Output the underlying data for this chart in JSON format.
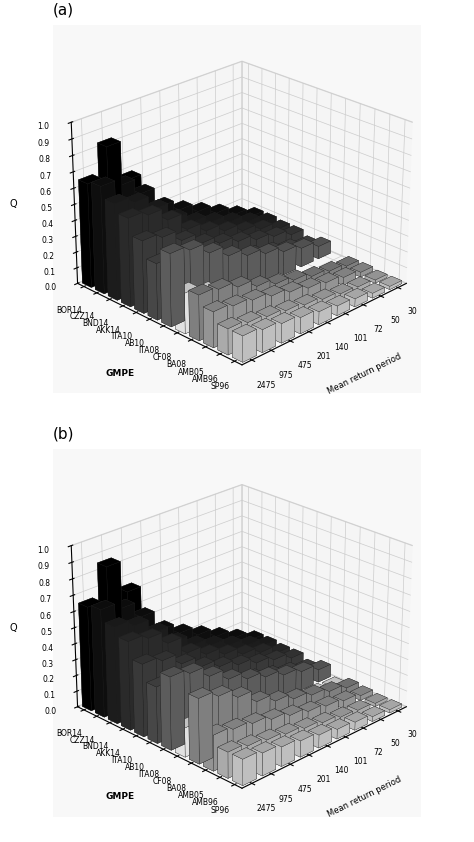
{
  "gmpes": [
    "SP96",
    "AMB96",
    "AMB05",
    "BA08",
    "CF08",
    "ITA08",
    "AB10",
    "ITA10",
    "AKK14",
    "BND14",
    "CZZ14",
    "BOR14"
  ],
  "return_periods": [
    "2475",
    "975",
    "475",
    "201",
    "140",
    "101",
    "72",
    "50",
    "30"
  ],
  "panel_a": [
    [
      0.16,
      0.14,
      0.12,
      0.1,
      0.08,
      0.06,
      0.05,
      0.03,
      0.02
    ],
    [
      0.16,
      0.14,
      0.12,
      0.1,
      0.08,
      0.06,
      0.04,
      0.03,
      0.02
    ],
    [
      0.22,
      0.2,
      0.18,
      0.15,
      0.12,
      0.09,
      0.07,
      0.05,
      0.03
    ],
    [
      0.28,
      0.26,
      0.22,
      0.17,
      0.13,
      0.1,
      0.07,
      0.05,
      0.03
    ],
    [
      0.25,
      0.2,
      0.15,
      0.1,
      0.05,
      0.0,
      0.0,
      0.0,
      0.0
    ],
    [
      0.45,
      0.42,
      0.35,
      0.28,
      0.23,
      0.19,
      0.15,
      0.12,
      0.08
    ],
    [
      0.35,
      0.32,
      0.27,
      0.21,
      0.17,
      0.14,
      0.11,
      0.08,
      0.05
    ],
    [
      0.45,
      0.42,
      0.35,
      0.28,
      0.23,
      0.19,
      0.15,
      0.12,
      0.08
    ],
    [
      0.55,
      0.52,
      0.44,
      0.33,
      0.27,
      0.22,
      0.17,
      0.13,
      0.08
    ],
    [
      0.6,
      0.56,
      0.47,
      0.36,
      0.29,
      0.24,
      0.19,
      0.14,
      0.09
    ],
    [
      0.67,
      0.63,
      0.53,
      0.4,
      0.33,
      0.27,
      0.21,
      0.15,
      0.09
    ],
    [
      0.65,
      0.83,
      0.58,
      0.32,
      0.25,
      0.19,
      0.14,
      0.09,
      0.05
    ]
  ],
  "panel_b": [
    [
      0.16,
      0.14,
      0.12,
      0.1,
      0.08,
      0.06,
      0.05,
      0.03,
      0.02
    ],
    [
      0.16,
      0.14,
      0.12,
      0.1,
      0.08,
      0.06,
      0.04,
      0.03,
      0.02
    ],
    [
      0.22,
      0.2,
      0.18,
      0.15,
      0.12,
      0.09,
      0.07,
      0.05,
      0.03
    ],
    [
      0.4,
      0.36,
      0.3,
      0.22,
      0.17,
      0.13,
      0.1,
      0.07,
      0.04
    ],
    [
      0.18,
      0.14,
      0.1,
      0.08,
      0.06,
      0.04,
      0.03,
      0.02,
      0.01
    ],
    [
      0.45,
      0.42,
      0.35,
      0.28,
      0.23,
      0.19,
      0.15,
      0.12,
      0.08
    ],
    [
      0.35,
      0.32,
      0.27,
      0.21,
      0.17,
      0.14,
      0.11,
      0.08,
      0.05
    ],
    [
      0.45,
      0.42,
      0.35,
      0.28,
      0.23,
      0.19,
      0.15,
      0.12,
      0.08
    ],
    [
      0.55,
      0.52,
      0.44,
      0.33,
      0.27,
      0.22,
      0.17,
      0.13,
      0.08
    ],
    [
      0.6,
      0.56,
      0.47,
      0.36,
      0.29,
      0.24,
      0.19,
      0.14,
      0.09
    ],
    [
      0.67,
      0.63,
      0.53,
      0.4,
      0.33,
      0.27,
      0.21,
      0.15,
      0.09
    ],
    [
      0.65,
      0.85,
      0.65,
      0.33,
      0.26,
      0.2,
      0.14,
      0.09,
      0.05
    ]
  ],
  "gmpe_colors": [
    "#d8d8d8",
    "#c0c0c0",
    "#a8a8a8",
    "#909090",
    "#ffffff",
    "#686868",
    "#505050",
    "#404040",
    "#303030",
    "#202020",
    "#101010",
    "#000000"
  ],
  "gmpe_hatches": [
    "",
    "",
    "",
    "",
    "",
    "",
    "",
    "",
    "",
    "",
    "///",
    "///"
  ],
  "panel_labels": [
    "(a)",
    "(b)"
  ],
  "ylabel_z": "Q",
  "ylabel_rp": "Mean return period",
  "xlabel_gmpe": "GMPE",
  "zticks": [
    0.0,
    0.1,
    0.2,
    0.3,
    0.4,
    0.5,
    0.6,
    0.7,
    0.8,
    0.9,
    1.0
  ],
  "elev": 25,
  "azim": 225,
  "figsize": [
    4.74,
    8.42
  ],
  "dpi": 100
}
